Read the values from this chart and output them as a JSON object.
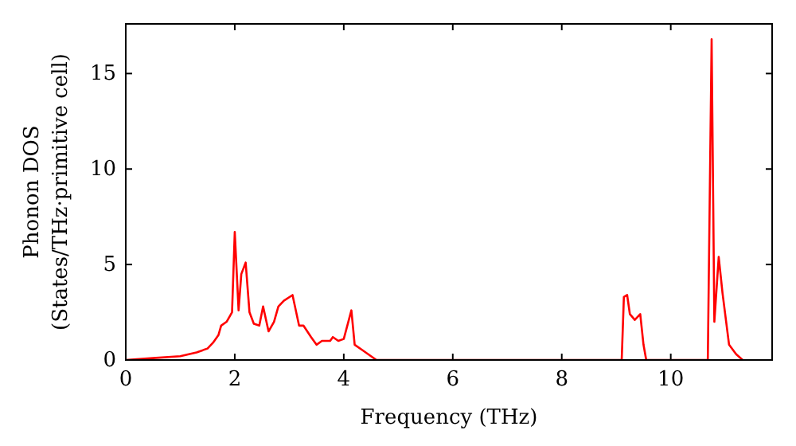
{
  "chart_data": {
    "type": "line",
    "xlabel": "Frequency (THz)",
    "ylabel": "Phonon DOS\n(States/THz·primitive cell)",
    "color": "#ff0000",
    "marker": "none",
    "line_style": "solid",
    "grid": false,
    "x": [
      0,
      0.5,
      1.0,
      1.3,
      1.5,
      1.6,
      1.7,
      1.75,
      1.85,
      1.95,
      2.0,
      2.07,
      2.12,
      2.2,
      2.27,
      2.35,
      2.45,
      2.52,
      2.62,
      2.72,
      2.8,
      2.9,
      3.06,
      3.18,
      3.26,
      3.4,
      3.5,
      3.6,
      3.75,
      3.8,
      3.9,
      4.0,
      4.14,
      4.2,
      4.35,
      4.5,
      4.6,
      9.1,
      9.14,
      9.2,
      9.25,
      9.34,
      9.44,
      9.5,
      9.55,
      10.68,
      10.75,
      10.8,
      10.88,
      10.95,
      11.07,
      11.2,
      11.32
    ],
    "values": [
      0,
      0.1,
      0.2,
      0.4,
      0.6,
      0.9,
      1.3,
      1.8,
      2.0,
      2.5,
      6.7,
      2.6,
      4.5,
      5.1,
      2.5,
      1.9,
      1.8,
      2.8,
      1.5,
      2.0,
      2.8,
      3.1,
      3.4,
      1.8,
      1.8,
      1.2,
      0.8,
      1.0,
      1.0,
      1.2,
      1.0,
      1.1,
      2.6,
      0.8,
      0.5,
      0.2,
      0,
      0,
      3.3,
      3.4,
      2.4,
      2.1,
      2.4,
      0.8,
      0,
      0,
      16.8,
      2.0,
      5.4,
      3.5,
      0.8,
      0.3,
      0
    ],
    "xlim": [
      0,
      11.86
    ],
    "ylim": [
      0,
      17.6
    ],
    "xticks": [
      0,
      2,
      4,
      6,
      8,
      10
    ],
    "yticks": [
      0,
      5,
      10,
      15
    ]
  }
}
